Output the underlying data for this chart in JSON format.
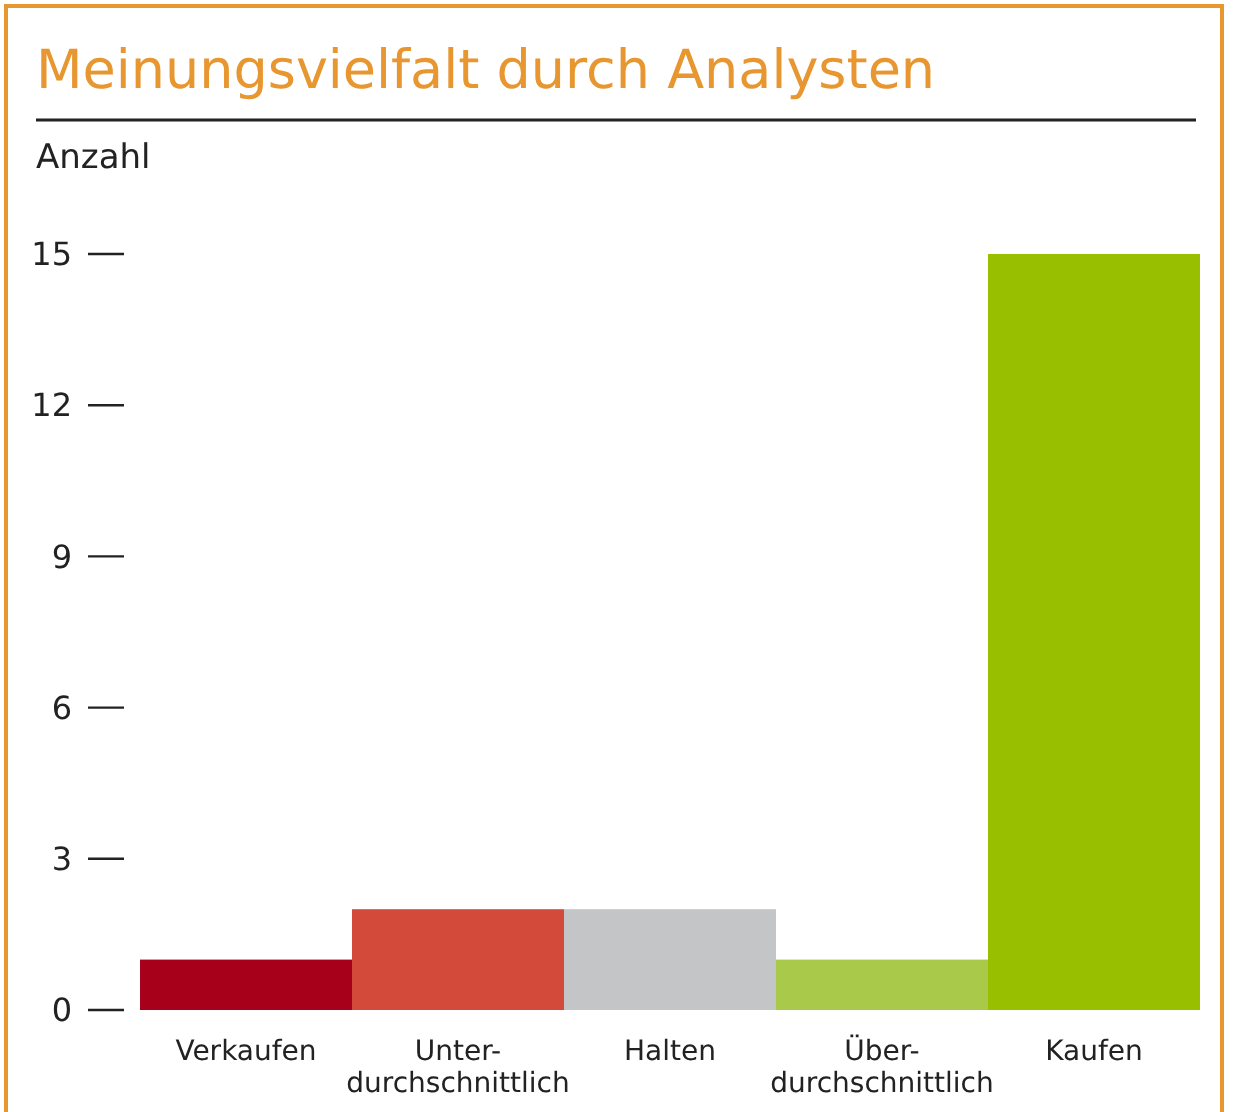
{
  "chart_data": {
    "type": "bar",
    "title": "Meinungsvielfalt durch Analysten",
    "ylabel": "Anzahl",
    "categories": [
      "Verkaufen",
      "Unter-\ndurchschnittlich",
      "Halten",
      "Über-\ndurchschnittlich",
      "Kaufen"
    ],
    "values": [
      1,
      2,
      2,
      1,
      15
    ],
    "colors": [
      "#a6001a",
      "#d44a3a",
      "#c3c5c7",
      "#a9c94a",
      "#99c000"
    ],
    "ylim": [
      0,
      15
    ],
    "yticks": [
      0,
      3,
      6,
      9,
      12,
      15
    ],
    "grid": false
  }
}
